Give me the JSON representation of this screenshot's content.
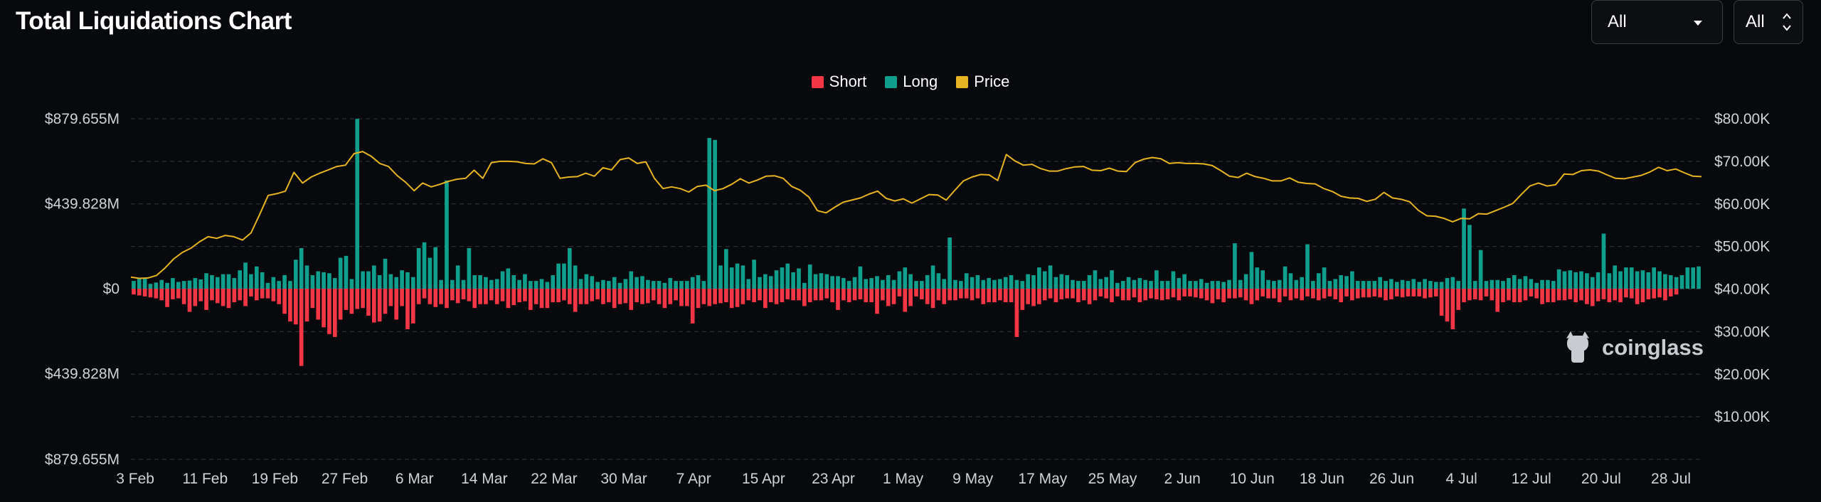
{
  "header": {
    "title": "Total Liquidations Chart",
    "select_range": "All",
    "select_coin": "All"
  },
  "watermark": "coinglass",
  "colors": {
    "short": "#f23645",
    "long": "#0f9f8c",
    "price": "#e6b422",
    "grid": "#2c2e36",
    "background": "#08090d"
  },
  "chart_data": {
    "type": "bar",
    "legend": [
      "Short",
      "Long",
      "Price"
    ],
    "legend_position": "top-center",
    "grid": true,
    "y_left": {
      "ticks": [
        "$879.655M",
        "$439.828M",
        "$0",
        "$439.828M",
        "$879.655M"
      ],
      "range": [
        -879.655,
        879.655
      ],
      "unit": "M USD"
    },
    "y_right": {
      "ticks": [
        "$80.00K",
        "$70.00K",
        "$60.00K",
        "$50.00K",
        "$40.00K",
        "$30.00K",
        "$20.00K",
        "$10.00K"
      ],
      "range": [
        0,
        80
      ]
    },
    "x_ticks": [
      {
        "label": "3 Feb",
        "day": 0
      },
      {
        "label": "11 Feb",
        "day": 8
      },
      {
        "label": "19 Feb",
        "day": 16
      },
      {
        "label": "27 Feb",
        "day": 24
      },
      {
        "label": "6 Mar",
        "day": 32
      },
      {
        "label": "14 Mar",
        "day": 40
      },
      {
        "label": "22 Mar",
        "day": 48
      },
      {
        "label": "30 Mar",
        "day": 56
      },
      {
        "label": "7 Apr",
        "day": 64
      },
      {
        "label": "15 Apr",
        "day": 72
      },
      {
        "label": "23 Apr",
        "day": 80
      },
      {
        "label": "1 May",
        "day": 88
      },
      {
        "label": "9 May",
        "day": 96
      },
      {
        "label": "17 May",
        "day": 104
      },
      {
        "label": "25 May",
        "day": 112
      },
      {
        "label": "2 Jun",
        "day": 120
      },
      {
        "label": "10 Jun",
        "day": 128
      },
      {
        "label": "18 Jun",
        "day": 136
      },
      {
        "label": "26 Jun",
        "day": 144
      },
      {
        "label": "4 Jul",
        "day": 152
      },
      {
        "label": "12 Jul",
        "day": 160
      },
      {
        "label": "20 Jul",
        "day": 168
      },
      {
        "label": "28 Jul",
        "day": 176
      }
    ],
    "day_count": 180,
    "long_liquidations_musd": [
      40,
      55,
      55,
      25,
      32,
      45,
      30,
      55,
      35,
      40,
      42,
      55,
      48,
      80,
      70,
      60,
      75,
      75,
      55,
      95,
      135,
      75,
      115,
      85,
      30,
      60,
      40,
      70,
      40,
      150,
      210,
      120,
      70,
      90,
      85,
      80,
      55,
      160,
      170,
      50,
      879,
      90,
      90,
      120,
      70,
      155,
      75,
      60,
      95,
      85,
      60,
      210,
      240,
      160,
      215,
      45,
      560,
      45,
      120,
      45,
      210,
      70,
      70,
      60,
      45,
      50,
      90,
      105,
      70,
      45,
      75,
      40,
      40,
      50,
      35,
      70,
      130,
      130,
      210,
      120,
      50,
      75,
      65,
      35,
      45,
      40,
      60,
      30,
      50,
      90,
      60,
      65,
      45,
      40,
      40,
      30,
      55,
      40,
      40,
      40,
      60,
      70,
      40,
      780,
      770,
      120,
      205,
      110,
      130,
      120,
      50,
      150,
      60,
      75,
      65,
      95,
      110,
      130,
      85,
      105,
      30,
      125,
      75,
      80,
      75,
      65,
      65,
      55,
      40,
      60,
      115,
      50,
      55,
      65,
      45,
      70,
      45,
      90,
      110,
      75,
      40,
      40,
      70,
      120,
      80,
      50,
      265,
      45,
      40,
      80,
      60,
      70,
      45,
      55,
      45,
      50,
      60,
      70,
      45,
      40,
      75,
      70,
      110,
      90,
      120,
      60,
      75,
      70,
      45,
      40,
      40,
      70,
      95,
      50,
      60,
      95,
      30,
      40,
      60,
      45,
      55,
      45,
      40,
      95,
      40,
      40,
      90,
      55,
      75,
      40,
      40,
      50,
      30,
      40,
      40,
      35,
      45,
      235,
      45,
      75,
      190,
      110,
      95,
      45,
      40,
      45,
      115,
      80,
      45,
      60,
      230,
      40,
      80,
      110,
      40,
      50,
      70,
      65,
      90,
      40,
      40,
      40,
      40,
      60,
      40,
      50,
      35,
      45,
      40,
      50,
      35,
      50,
      40,
      35,
      35,
      55,
      60,
      40,
      415,
      330,
      40,
      200,
      40,
      45,
      45,
      40,
      55,
      70,
      50,
      65,
      50,
      30,
      45,
      45,
      40,
      100,
      90,
      95,
      85,
      90,
      80,
      60,
      85,
      285,
      80,
      120,
      90,
      110,
      110,
      90,
      95,
      85,
      110,
      90,
      75,
      70,
      60,
      70,
      110,
      110,
      115
    ],
    "short_liquidations_musd": [
      30,
      35,
      40,
      45,
      50,
      60,
      95,
      55,
      50,
      80,
      120,
      90,
      65,
      110,
      60,
      75,
      90,
      100,
      70,
      60,
      90,
      40,
      60,
      50,
      50,
      65,
      80,
      130,
      170,
      185,
      400,
      170,
      100,
      160,
      200,
      235,
      250,
      160,
      110,
      130,
      105,
      100,
      140,
      175,
      170,
      130,
      90,
      160,
      90,
      210,
      180,
      80,
      50,
      80,
      95,
      80,
      100,
      60,
      75,
      55,
      65,
      100,
      80,
      80,
      60,
      80,
      65,
      100,
      85,
      70,
      65,
      110,
      80,
      100,
      100,
      70,
      70,
      60,
      80,
      120,
      80,
      80,
      65,
      55,
      80,
      70,
      100,
      80,
      75,
      110,
      70,
      80,
      75,
      60,
      80,
      100,
      80,
      60,
      90,
      90,
      180,
      100,
      80,
      90,
      80,
      75,
      70,
      100,
      95,
      80,
      60,
      70,
      60,
      100,
      70,
      80,
      70,
      55,
      60,
      60,
      90,
      70,
      60,
      60,
      50,
      70,
      110,
      60,
      70,
      60,
      55,
      70,
      70,
      130,
      60,
      90,
      80,
      40,
      120,
      90,
      40,
      55,
      80,
      100,
      60,
      80,
      60,
      60,
      50,
      50,
      60,
      50,
      80,
      70,
      70,
      60,
      70,
      70,
      250,
      110,
      80,
      90,
      80,
      60,
      50,
      70,
      55,
      50,
      50,
      70,
      60,
      80,
      60,
      40,
      50,
      70,
      40,
      60,
      60,
      45,
      70,
      60,
      50,
      55,
      60,
      55,
      45,
      60,
      40,
      40,
      45,
      50,
      60,
      75,
      55,
      70,
      50,
      50,
      45,
      60,
      80,
      60,
      40,
      50,
      50,
      70,
      40,
      60,
      50,
      60,
      40,
      50,
      60,
      50,
      40,
      55,
      70,
      40,
      60,
      50,
      45,
      45,
      40,
      45,
      60,
      55,
      40,
      45,
      40,
      40,
      40,
      50,
      45,
      40,
      140,
      170,
      210,
      110,
      70,
      60,
      55,
      60,
      40,
      60,
      120,
      70,
      60,
      70,
      70,
      60,
      40,
      50,
      80,
      70,
      70,
      60,
      60,
      55,
      70,
      60,
      80,
      90,
      65,
      55,
      70,
      60,
      70,
      45,
      50,
      80,
      70,
      55,
      50,
      45,
      60,
      40,
      30
    ],
    "price_kusd": [
      42.8,
      42.5,
      42.6,
      43.2,
      45.0,
      47.1,
      48.6,
      49.6,
      51.1,
      52.3,
      51.9,
      52.6,
      52.3,
      51.5,
      53.2,
      57.5,
      62.0,
      62.4,
      63.0,
      67.4,
      64.9,
      66.3,
      67.2,
      68.0,
      68.8,
      69.1,
      71.8,
      72.3,
      71.2,
      69.5,
      68.8,
      66.7,
      65.1,
      63.1,
      64.9,
      64.0,
      64.6,
      65.3,
      65.8,
      66.0,
      67.9,
      66.0,
      69.7,
      70.0,
      70.0,
      69.9,
      69.5,
      69.4,
      70.6,
      69.7,
      66.0,
      66.3,
      66.4,
      67.2,
      66.5,
      68.5,
      68.0,
      70.4,
      70.8,
      69.5,
      69.9,
      66.0,
      63.6,
      64.0,
      63.6,
      62.8,
      64.1,
      64.4,
      63.1,
      63.6,
      64.6,
      65.9,
      64.9,
      65.6,
      66.5,
      66.6,
      66.0,
      64.1,
      63.2,
      61.6,
      58.4,
      57.9,
      59.2,
      60.4,
      60.9,
      61.4,
      62.3,
      63.0,
      61.3,
      60.7,
      61.2,
      60.2,
      61.2,
      62.2,
      62.1,
      60.9,
      63.2,
      65.4,
      66.3,
      66.9,
      66.8,
      65.5,
      71.6,
      70.1,
      69.1,
      69.3,
      68.3,
      67.7,
      67.7,
      68.3,
      68.7,
      68.8,
      67.9,
      67.8,
      68.4,
      67.7,
      67.6,
      69.7,
      70.5,
      70.9,
      70.6,
      69.5,
      69.7,
      69.5,
      69.5,
      69.4,
      69.0,
      67.8,
      66.5,
      66.2,
      67.2,
      66.4,
      66.0,
      65.4,
      65.4,
      66.1,
      65.1,
      64.8,
      64.7,
      63.6,
      62.9,
      61.8,
      61.4,
      61.3,
      60.6,
      61.1,
      62.7,
      61.4,
      61.1,
      60.5,
      58.5,
      57.2,
      57.1,
      56.6,
      55.8,
      56.6,
      56.5,
      57.7,
      57.6,
      58.4,
      59.2,
      60.1,
      62.2,
      64.2,
      64.9,
      64.2,
      64.5,
      67.0,
      66.9,
      67.8,
      68.0,
      67.7,
      66.8,
      66.0,
      65.9,
      66.3,
      66.7,
      67.5,
      68.6,
      67.8,
      68.2,
      67.3,
      66.5,
      66.4
    ]
  }
}
